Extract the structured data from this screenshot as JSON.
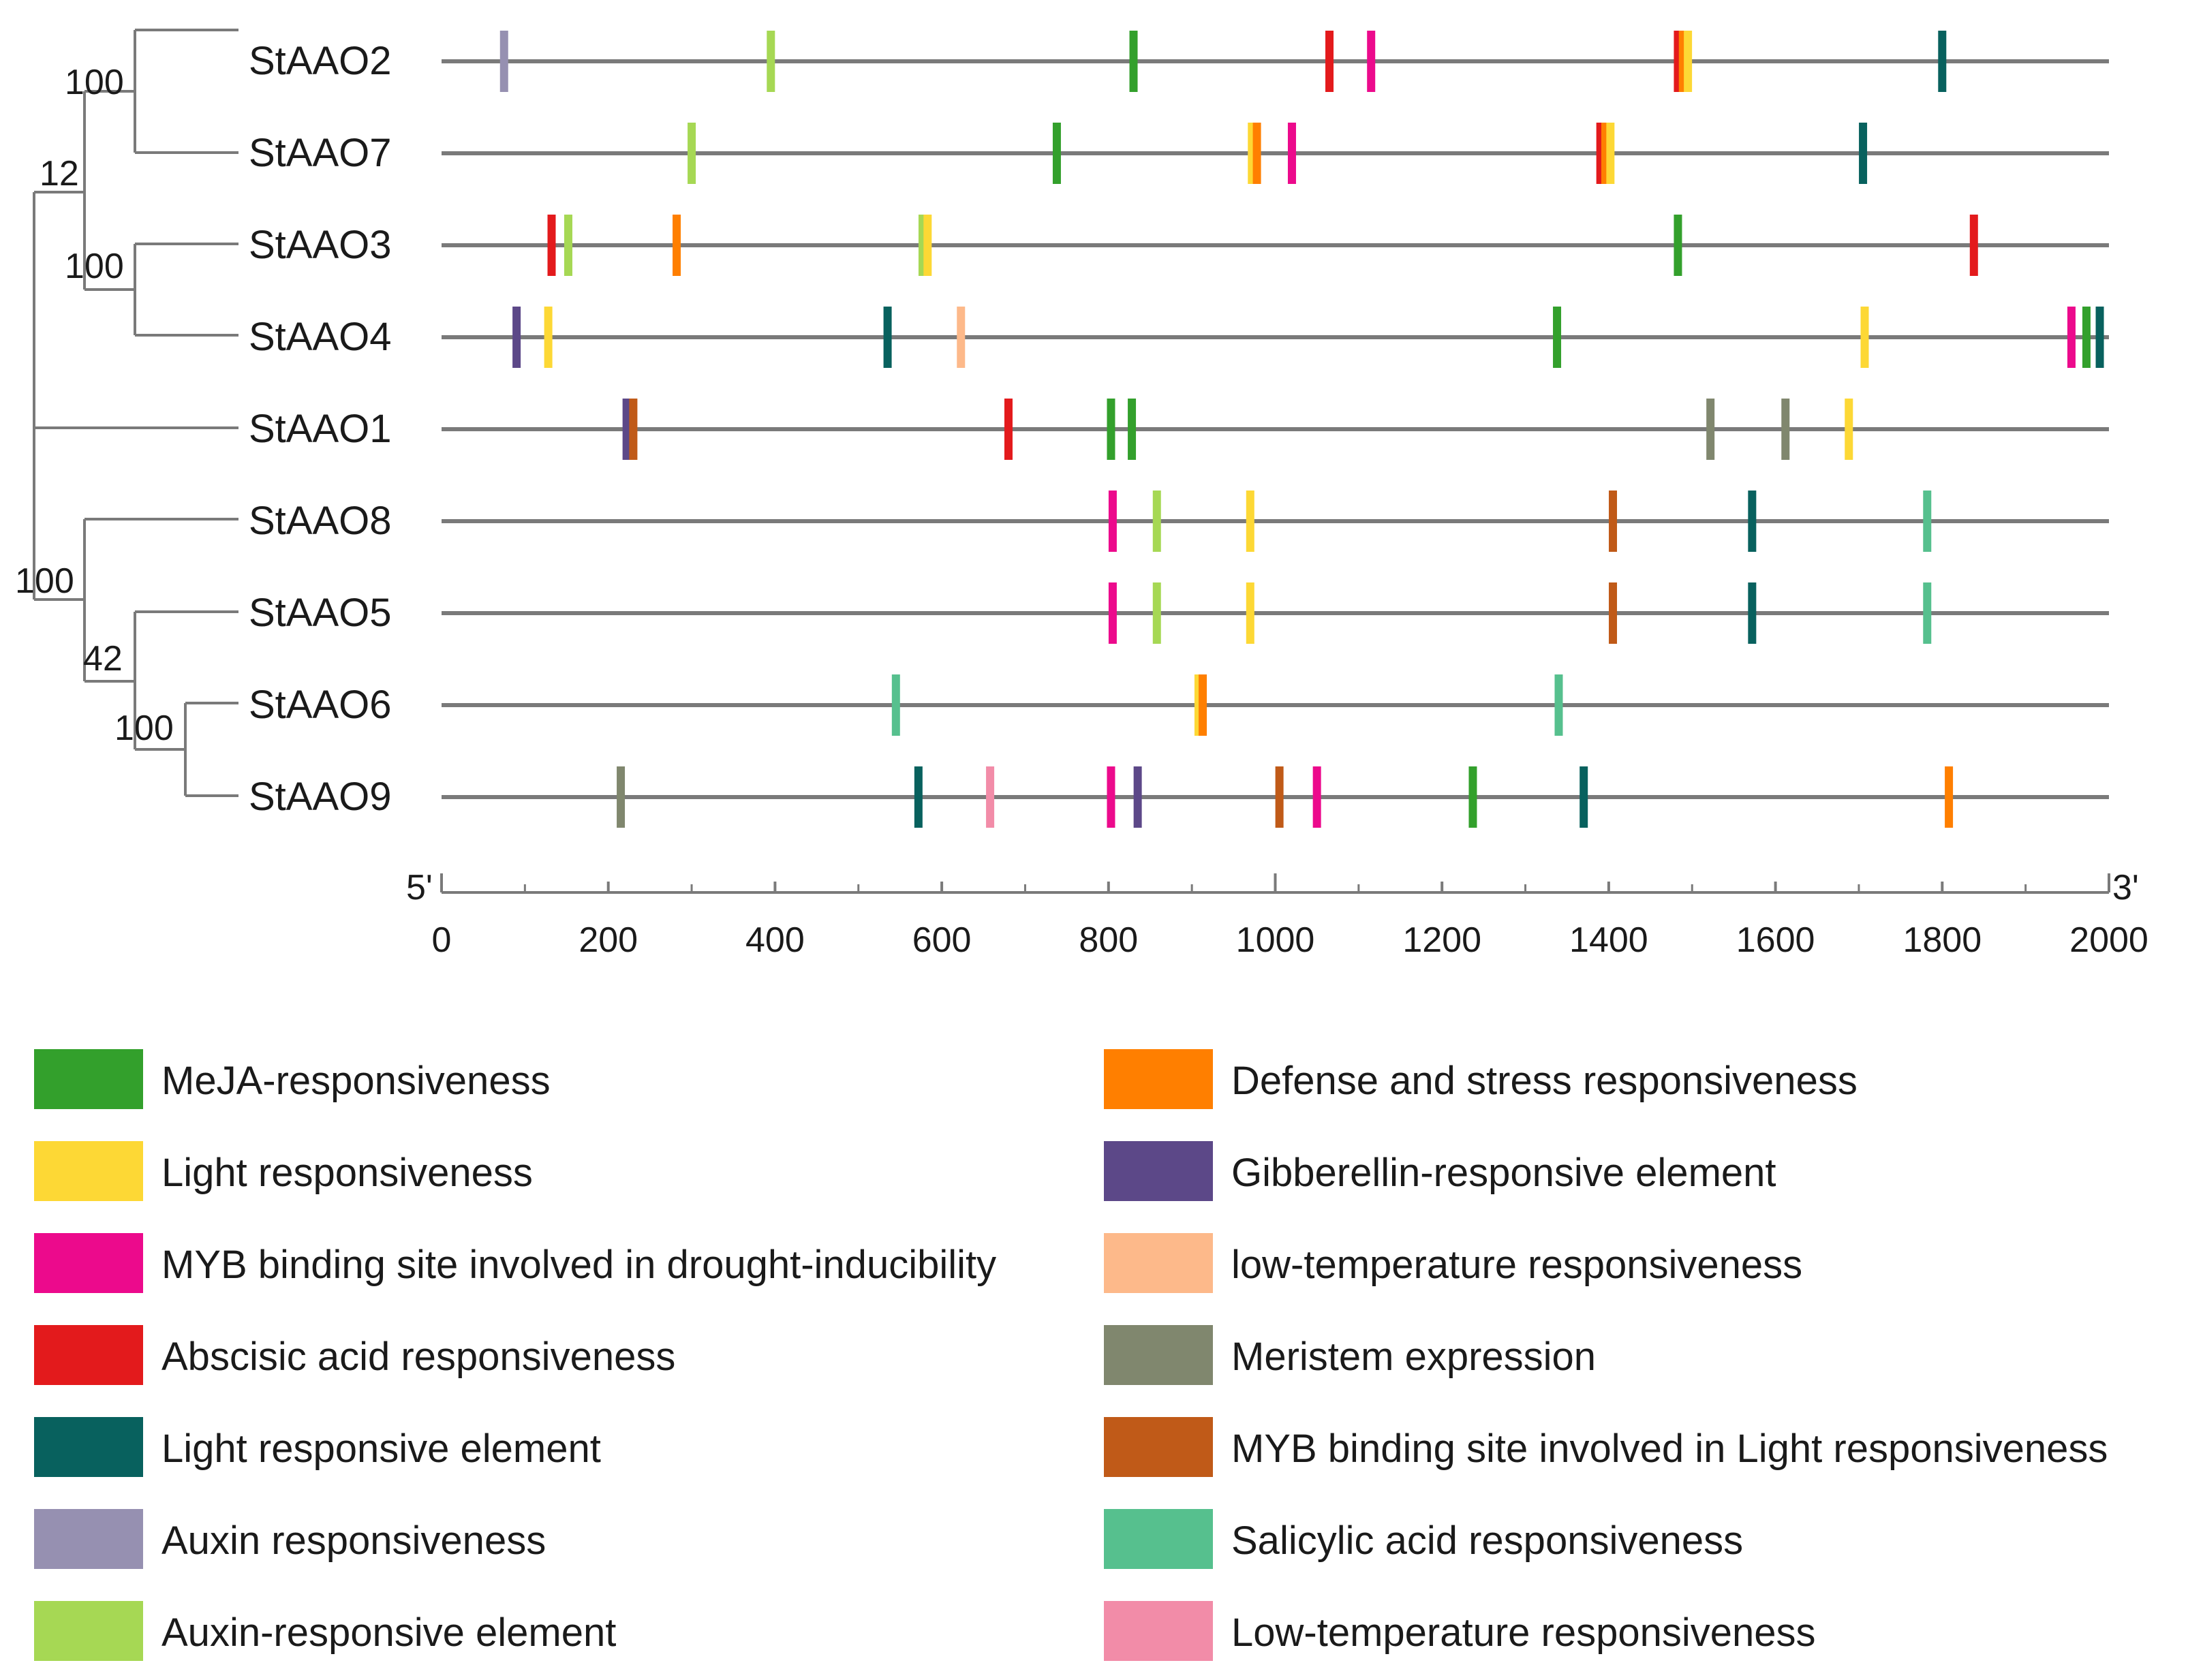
{
  "colors": {
    "meja": "#33A02C",
    "light": "#FDD835",
    "myb_drought": "#EC0A8C",
    "aba": "#E31A1C",
    "light_elem": "#08615E",
    "auxin": "#9690B1",
    "auxin_elem": "#A6D854",
    "defense": "#FF7F00",
    "gibberellin": "#5C4888",
    "lowtemp_lc": "#FDB98A",
    "meristem": "#80876E",
    "myb_light": "#C05A18",
    "salicylic": "#56C08E",
    "lowtemp_uc": "#F28CA8"
  },
  "tree": {
    "bootstraps": [
      "100",
      "12",
      "100",
      "100",
      "42",
      "100"
    ]
  },
  "axis": {
    "start_label": "5'",
    "end_label": "3'",
    "min": 0,
    "max": 2000,
    "ticks": [
      "0",
      "200",
      "400",
      "600",
      "800",
      "1000",
      "1200",
      "1400",
      "1600",
      "1800",
      "2000"
    ]
  },
  "genes": [
    {
      "name": "StAAO2",
      "elements": [
        {
          "pos": 75,
          "type": "auxin"
        },
        {
          "pos": 395,
          "type": "auxin_elem"
        },
        {
          "pos": 830,
          "type": "meja"
        },
        {
          "pos": 1065,
          "type": "aba"
        },
        {
          "pos": 1115,
          "type": "myb_drought"
        },
        {
          "pos": 1483,
          "type": "aba"
        },
        {
          "pos": 1489,
          "type": "defense"
        },
        {
          "pos": 1495,
          "type": "light"
        },
        {
          "pos": 1800,
          "type": "light_elem"
        }
      ]
    },
    {
      "name": "StAAO7",
      "elements": [
        {
          "pos": 300,
          "type": "auxin_elem"
        },
        {
          "pos": 738,
          "type": "meja"
        },
        {
          "pos": 972,
          "type": "light"
        },
        {
          "pos": 978,
          "type": "defense"
        },
        {
          "pos": 1020,
          "type": "myb_drought"
        },
        {
          "pos": 1390,
          "type": "aba"
        },
        {
          "pos": 1396,
          "type": "defense"
        },
        {
          "pos": 1402,
          "type": "light"
        },
        {
          "pos": 1705,
          "type": "light_elem"
        }
      ]
    },
    {
      "name": "StAAO3",
      "elements": [
        {
          "pos": 132,
          "type": "aba"
        },
        {
          "pos": 152,
          "type": "auxin_elem"
        },
        {
          "pos": 282,
          "type": "defense"
        },
        {
          "pos": 577,
          "type": "auxin_elem"
        },
        {
          "pos": 583,
          "type": "light"
        },
        {
          "pos": 1483,
          "type": "meja"
        },
        {
          "pos": 1838,
          "type": "aba"
        }
      ]
    },
    {
      "name": "StAAO4",
      "elements": [
        {
          "pos": 90,
          "type": "gibberellin"
        },
        {
          "pos": 128,
          "type": "light"
        },
        {
          "pos": 535,
          "type": "light_elem"
        },
        {
          "pos": 623,
          "type": "lowtemp_lc"
        },
        {
          "pos": 1338,
          "type": "meja"
        },
        {
          "pos": 1707,
          "type": "light"
        },
        {
          "pos": 1955,
          "type": "myb_drought"
        },
        {
          "pos": 1973,
          "type": "meja"
        },
        {
          "pos": 1989,
          "type": "light_elem"
        }
      ]
    },
    {
      "name": "StAAO1",
      "elements": [
        {
          "pos": 222,
          "type": "gibberellin"
        },
        {
          "pos": 230,
          "type": "myb_light"
        },
        {
          "pos": 680,
          "type": "aba"
        },
        {
          "pos": 803,
          "type": "meja"
        },
        {
          "pos": 828,
          "type": "meja"
        },
        {
          "pos": 1522,
          "type": "meristem"
        },
        {
          "pos": 1612,
          "type": "meristem"
        },
        {
          "pos": 1688,
          "type": "light"
        }
      ]
    },
    {
      "name": "StAAO8",
      "elements": [
        {
          "pos": 805,
          "type": "myb_drought"
        },
        {
          "pos": 858,
          "type": "auxin_elem"
        },
        {
          "pos": 970,
          "type": "light"
        },
        {
          "pos": 1405,
          "type": "myb_light"
        },
        {
          "pos": 1572,
          "type": "light_elem"
        },
        {
          "pos": 1782,
          "type": "salicylic"
        }
      ]
    },
    {
      "name": "StAAO5",
      "elements": [
        {
          "pos": 805,
          "type": "myb_drought"
        },
        {
          "pos": 858,
          "type": "auxin_elem"
        },
        {
          "pos": 970,
          "type": "light"
        },
        {
          "pos": 1405,
          "type": "myb_light"
        },
        {
          "pos": 1572,
          "type": "light_elem"
        },
        {
          "pos": 1782,
          "type": "salicylic"
        }
      ]
    },
    {
      "name": "StAAO6",
      "elements": [
        {
          "pos": 545,
          "type": "salicylic"
        },
        {
          "pos": 908,
          "type": "light"
        },
        {
          "pos": 913,
          "type": "defense"
        },
        {
          "pos": 1340,
          "type": "salicylic"
        }
      ]
    },
    {
      "name": "StAAO9",
      "elements": [
        {
          "pos": 215,
          "type": "meristem"
        },
        {
          "pos": 572,
          "type": "light_elem"
        },
        {
          "pos": 658,
          "type": "lowtemp_uc"
        },
        {
          "pos": 803,
          "type": "myb_drought"
        },
        {
          "pos": 835,
          "type": "gibberellin"
        },
        {
          "pos": 1005,
          "type": "myb_light"
        },
        {
          "pos": 1050,
          "type": "myb_drought"
        },
        {
          "pos": 1237,
          "type": "meja"
        },
        {
          "pos": 1370,
          "type": "light_elem"
        },
        {
          "pos": 1808,
          "type": "defense"
        }
      ]
    }
  ],
  "legend": [
    {
      "type": "meja",
      "label": "MeJA-responsiveness"
    },
    {
      "type": "light",
      "label": "Light responsiveness"
    },
    {
      "type": "myb_drought",
      "label": "MYB binding site involved in drought-inducibility"
    },
    {
      "type": "aba",
      "label": "Abscisic acid responsiveness"
    },
    {
      "type": "light_elem",
      "label": "Light responsive element"
    },
    {
      "type": "auxin",
      "label": "Auxin responsiveness"
    },
    {
      "type": "auxin_elem",
      "label": "Auxin-responsive element"
    },
    {
      "type": "defense",
      "label": "Defense and stress responsiveness"
    },
    {
      "type": "gibberellin",
      "label": "Gibberellin-responsive element"
    },
    {
      "type": "lowtemp_lc",
      "label": "low-temperature responsiveness"
    },
    {
      "type": "meristem",
      "label": "Meristem expression"
    },
    {
      "type": "myb_light",
      "label": "MYB binding site involved in Light responsiveness"
    },
    {
      "type": "salicylic",
      "label": "Salicylic acid responsiveness"
    },
    {
      "type": "lowtemp_uc",
      "label": "Low-temperature responsiveness"
    }
  ]
}
